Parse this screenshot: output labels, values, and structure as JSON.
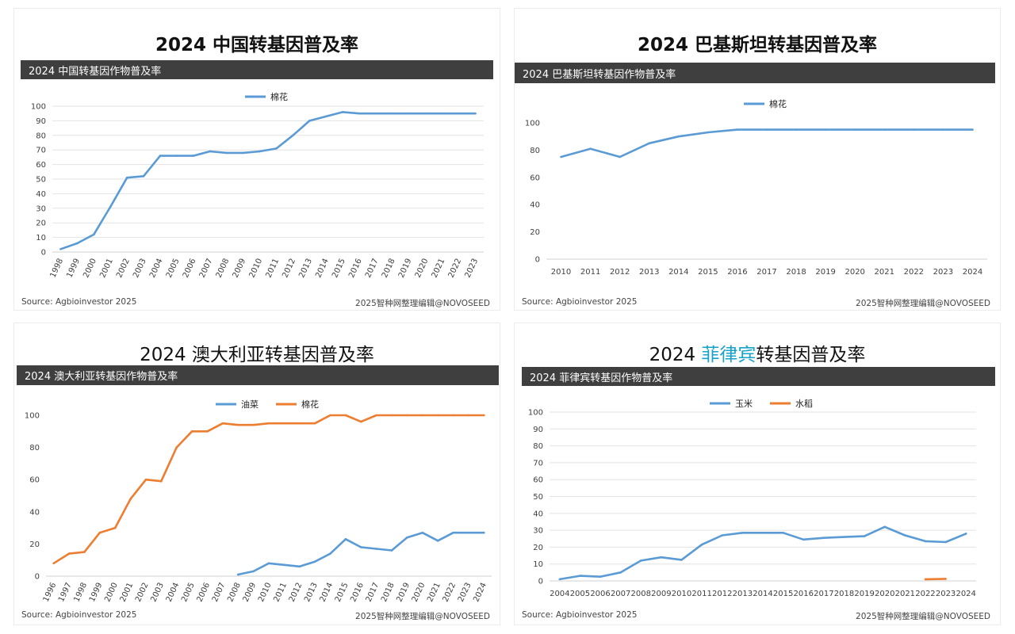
{
  "colors": {
    "blue": "#5b9bd5",
    "orange": "#ed7d31",
    "grid": "#e3e3e3",
    "header_bg": "#3f3f3f",
    "accent": "#17a2c9"
  },
  "panels": [
    {
      "title": "2024 中国转基因普及率",
      "header": "2024 中国转基因作物普及率",
      "source": "Source: Agbioinvestor 2025",
      "credit": "2025智种网整理编辑@NOVOSEED"
    },
    {
      "title": "2024 巴基斯坦转基因普及率",
      "header": "2024 巴基斯坦转基因作物普及率",
      "source": "Source: Agbioinvestor 2025",
      "credit": "2025智种网整理编辑@NOVOSEED"
    },
    {
      "title": "2024 澳大利亚转基因普及率",
      "header": "2024 澳大利亚转基因作物普及率",
      "source": "Source: Agbioinvestor 2025",
      "credit": "2025智种网整理编辑@NOVOSEED"
    },
    {
      "title_prefix": "2024 ",
      "title_accent": "菲律宾",
      "title_suffix": "转基因普及率",
      "header": "2024 菲律宾转基因作物普及率",
      "source": "Source: Agbioinvestor 2025",
      "credit": "2025智种网整理编辑@NOVOSEED"
    }
  ],
  "chart_data": [
    {
      "type": "line",
      "x": [
        "1998",
        "1999",
        "2000",
        "2001",
        "2002",
        "2003",
        "2004",
        "2005",
        "2006",
        "2007",
        "2008",
        "2009",
        "2010",
        "2011",
        "2012",
        "2013",
        "2014",
        "2015",
        "2016",
        "2017",
        "2018",
        "2019",
        "2020",
        "2021",
        "2022",
        "2023"
      ],
      "ylim": [
        0,
        100
      ],
      "yticks": [
        0,
        10,
        20,
        30,
        40,
        50,
        60,
        70,
        80,
        90,
        100
      ],
      "grid": true,
      "legend_position": "top-center",
      "x_tick_rotation": "rotated",
      "series": [
        {
          "name": "棉花",
          "color": "#5b9bd5",
          "values": [
            2,
            6,
            12,
            31,
            51,
            52,
            66,
            66,
            66,
            69,
            68,
            68,
            69,
            71,
            80,
            90,
            93,
            96,
            95,
            95,
            95,
            95,
            95,
            95,
            95,
            95
          ]
        }
      ]
    },
    {
      "type": "line",
      "x": [
        "2010",
        "2011",
        "2012",
        "2013",
        "2014",
        "2015",
        "2016",
        "2017",
        "2018",
        "2019",
        "2020",
        "2021",
        "2022",
        "2023",
        "2024"
      ],
      "ylim": [
        0,
        100
      ],
      "yticks": [
        0,
        20,
        40,
        60,
        80,
        100
      ],
      "grid": false,
      "legend_position": "top-center",
      "x_tick_rotation": "none",
      "series": [
        {
          "name": "棉花",
          "color": "#5b9bd5",
          "values": [
            75,
            81,
            75,
            85,
            90,
            93,
            95,
            95,
            95,
            95,
            95,
            95,
            95,
            95,
            95
          ]
        }
      ]
    },
    {
      "type": "line",
      "x": [
        "1996",
        "1997",
        "1998",
        "1999",
        "2000",
        "2001",
        "2002",
        "2003",
        "2004",
        "2005",
        "2006",
        "2007",
        "2008",
        "2009",
        "2010",
        "2011",
        "2012",
        "2013",
        "2014",
        "2015",
        "2016",
        "2017",
        "2018",
        "2019",
        "2020",
        "2021",
        "2022",
        "2023",
        "2024"
      ],
      "ylim": [
        0,
        100
      ],
      "yticks": [
        0,
        20,
        40,
        60,
        80,
        100
      ],
      "grid": false,
      "legend_position": "top-center",
      "x_tick_rotation": "rotated",
      "series": [
        {
          "name": "油菜",
          "color": "#5b9bd5",
          "values": [
            null,
            null,
            null,
            null,
            null,
            null,
            null,
            null,
            null,
            null,
            null,
            null,
            1,
            3,
            8,
            7,
            6,
            9,
            14,
            23,
            18,
            17,
            16,
            24,
            27,
            22,
            27,
            27,
            27
          ]
        },
        {
          "name": "棉花",
          "color": "#ed7d31",
          "values": [
            8,
            14,
            15,
            27,
            30,
            48,
            60,
            59,
            80,
            90,
            90,
            95,
            94,
            94,
            95,
            95,
            95,
            95,
            100,
            100,
            96,
            100,
            100,
            100,
            100,
            100,
            100,
            100,
            100
          ]
        }
      ]
    },
    {
      "type": "line",
      "x": [
        "2004",
        "2005",
        "2006",
        "2007",
        "2008",
        "2009",
        "2010",
        "2011",
        "2012",
        "2013",
        "2014",
        "2015",
        "2016",
        "2017",
        "2018",
        "2019",
        "2020",
        "2021",
        "2022",
        "2023",
        "2024"
      ],
      "ylim": [
        0,
        100
      ],
      "yticks": [
        0,
        10,
        20,
        30,
        40,
        50,
        60,
        70,
        80,
        90,
        100
      ],
      "grid": true,
      "legend_position": "top-center",
      "x_tick_rotation": "none",
      "series": [
        {
          "name": "玉米",
          "color": "#5b9bd5",
          "values": [
            1,
            3,
            2.5,
            5,
            12,
            14,
            12.5,
            21.5,
            27,
            28.5,
            28.5,
            28.5,
            24.5,
            25.5,
            26,
            26.5,
            32,
            27,
            23.5,
            23,
            28
          ]
        },
        {
          "name": "水稻",
          "color": "#ed7d31",
          "values": [
            null,
            null,
            null,
            null,
            null,
            null,
            null,
            null,
            null,
            null,
            null,
            null,
            null,
            null,
            null,
            null,
            null,
            null,
            1,
            1.2,
            null
          ]
        }
      ]
    }
  ]
}
